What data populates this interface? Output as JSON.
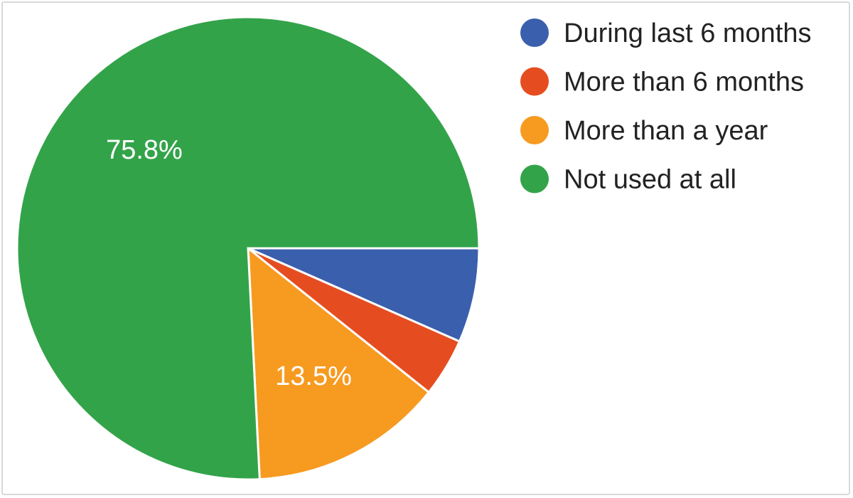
{
  "chart_data": {
    "type": "pie",
    "title": "",
    "legend_position": "right",
    "slices": [
      {
        "label": "During last 6 months",
        "value": 6.6,
        "color": "#3a5fad",
        "data_label": ""
      },
      {
        "label": "More than 6 months",
        "value": 4.1,
        "color": "#e54d21",
        "data_label": ""
      },
      {
        "label": "More than a year",
        "value": 13.5,
        "color": "#f79a20",
        "data_label": "13.5%"
      },
      {
        "label": "Not used at all",
        "value": 75.8,
        "color": "#33a34a",
        "data_label": "75.8%"
      }
    ]
  }
}
